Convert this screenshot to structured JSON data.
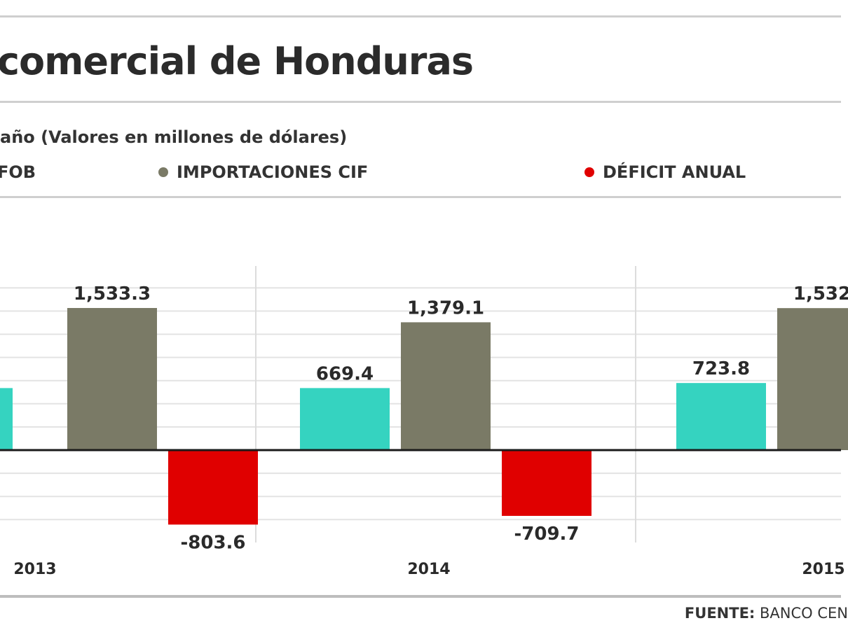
{
  "header": {
    "title": "comercial de Honduras",
    "subtitle": "año (Valores en millones de dólares)"
  },
  "legend": [
    {
      "label": "FOB",
      "color": "#35d3c0"
    },
    {
      "label": "IMPORTACIONES CIF",
      "color": "#7a7a66"
    },
    {
      "label": "DÉFICIT ANUAL",
      "color": "#e00000"
    }
  ],
  "footer": {
    "source_label": "FUENTE:",
    "source_text": "BANCO CEN"
  },
  "chart_data": {
    "type": "bar",
    "categories": [
      "2013",
      "2014",
      "2015"
    ],
    "series": [
      {
        "name": "FOB",
        "values": [
          null,
          669.4,
          723.8
        ],
        "value_labels": [
          "",
          "669.4",
          "723.8"
        ],
        "color": "#35d3c0"
      },
      {
        "name": "IMPORTACIONES CIF",
        "values": [
          1533.3,
          1379.1,
          1532
        ],
        "value_labels": [
          "1,533.3",
          "1,379.1",
          "1,532"
        ],
        "color": "#7a7a66"
      },
      {
        "name": "DÉFICIT ANUAL",
        "values": [
          -803.6,
          -709.7,
          null
        ],
        "value_labels": [
          "-803.6",
          "-709.7",
          ""
        ],
        "color": "#e00000"
      }
    ],
    "ylim": [
      -1000,
      1800
    ],
    "grid": true
  }
}
